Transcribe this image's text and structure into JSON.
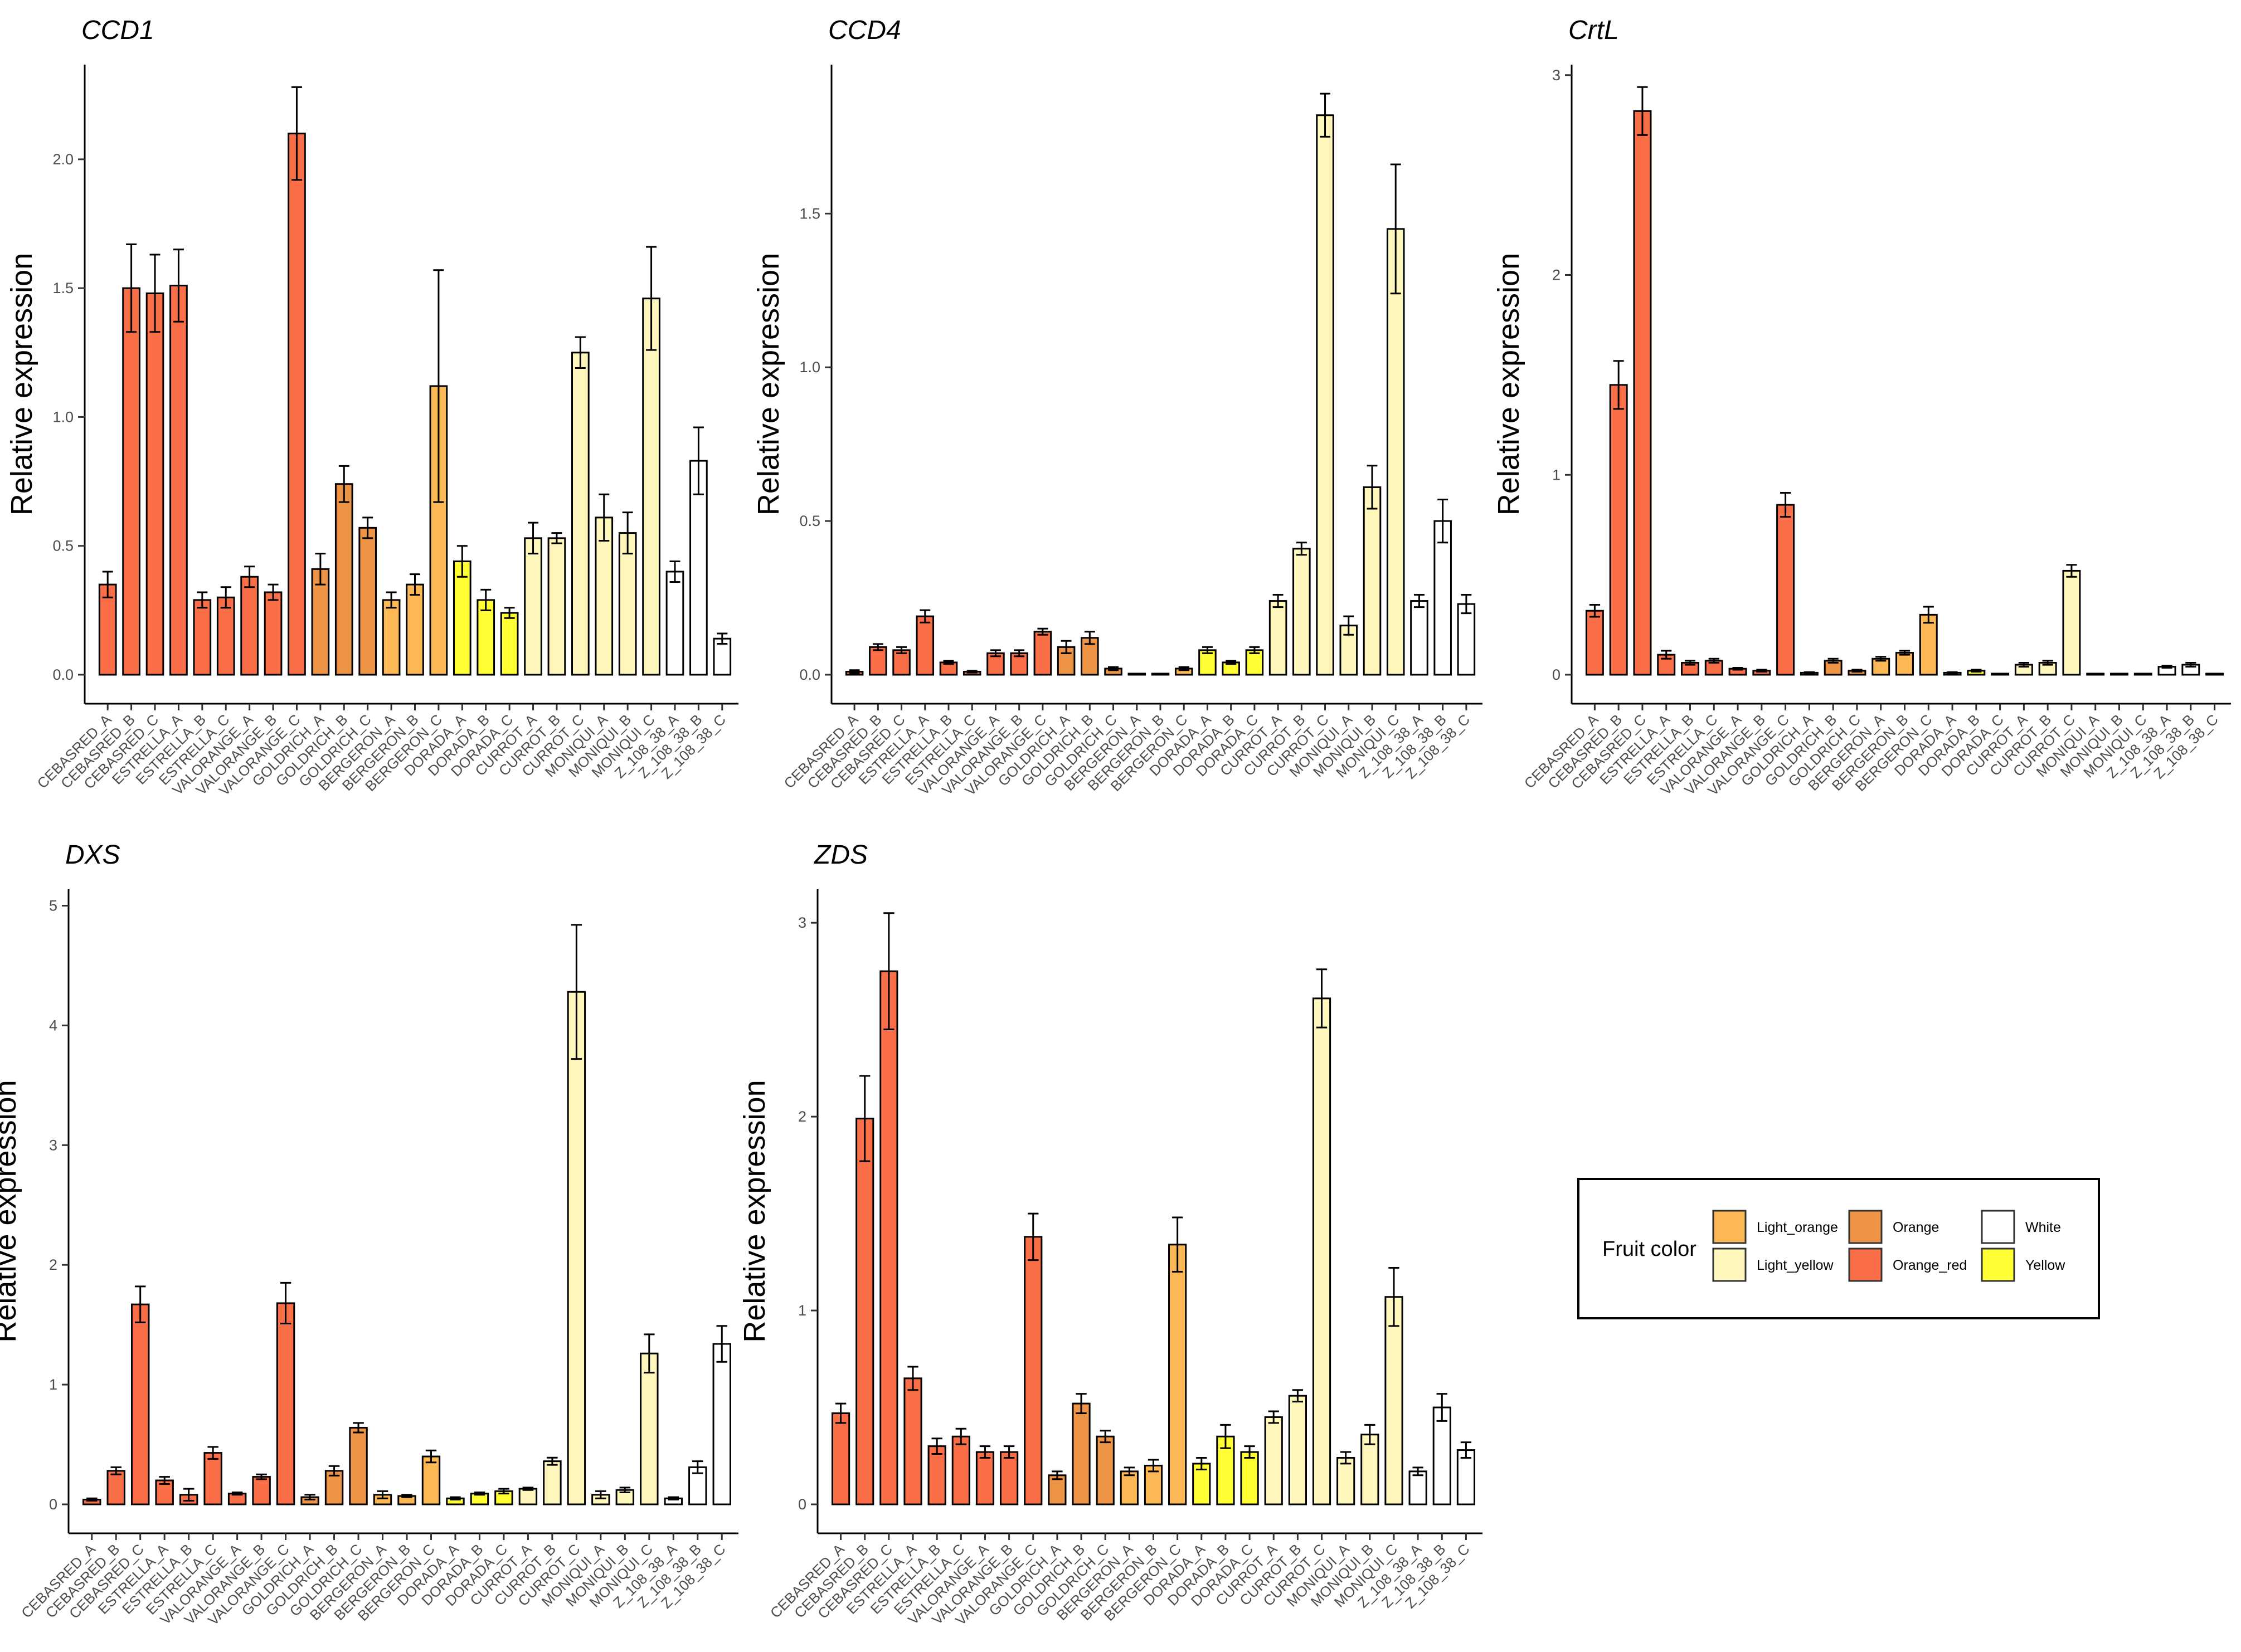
{
  "fill_colors": {
    "Light_orange": "#FDB856",
    "Orange": "#EE9447",
    "White": "#FFFFFF",
    "Light_yellow": "#FFF7BC",
    "Orange_red": "#FB6F48",
    "Yellow": "#FFFF33"
  },
  "legend": {
    "title": "Fruit color",
    "items": [
      {
        "label": "Light_orange",
        "color": "#FDB856"
      },
      {
        "label": "Light_yellow",
        "color": "#FFF7BC"
      },
      {
        "label": "Orange",
        "color": "#EE9447"
      },
      {
        "label": "Orange_red",
        "color": "#FB6F48"
      },
      {
        "label": "White",
        "color": "#FFFFFF"
      },
      {
        "label": "Yellow",
        "color": "#FFFF33"
      }
    ]
  },
  "chart_data": [
    {
      "type": "bar",
      "title": "CCD1",
      "ylabel": "Relative expression",
      "ylim": [
        0,
        2.35
      ],
      "yticks": [
        0.0,
        0.5,
        1.0,
        1.5,
        2.0
      ],
      "ytick_labels": [
        "0.0",
        "0.5",
        "1.0",
        "1.5",
        "2.0"
      ],
      "categories": [
        "CEBASRED_A",
        "CEBASRED_B",
        "CEBASRED_C",
        "ESTRELLA_A",
        "ESTRELLA_B",
        "ESTRELLA_C",
        "VALORANGE_A",
        "VALORANGE_B",
        "VALORANGE_C",
        "GOLDRICH_A",
        "GOLDRICH_B",
        "GOLDRICH_C",
        "BERGERON_A",
        "BERGERON_B",
        "BERGERON_C",
        "DORADA_A",
        "DORADA_B",
        "DORADA_C",
        "CURROT_A",
        "CURROT_B",
        "CURROT_C",
        "MONIQUI_A",
        "MONIQUI_B",
        "MONIQUI_C",
        "Z_108_38_A",
        "Z_108_38_B",
        "Z_108_38_C"
      ],
      "fruit_color": [
        "Orange_red",
        "Orange_red",
        "Orange_red",
        "Orange_red",
        "Orange_red",
        "Orange_red",
        "Orange_red",
        "Orange_red",
        "Orange_red",
        "Orange",
        "Orange",
        "Orange",
        "Light_orange",
        "Light_orange",
        "Light_orange",
        "Yellow",
        "Yellow",
        "Yellow",
        "Light_yellow",
        "Light_yellow",
        "Light_yellow",
        "Light_yellow",
        "Light_yellow",
        "Light_yellow",
        "White",
        "White",
        "White"
      ],
      "values": [
        0.35,
        1.5,
        1.48,
        1.51,
        0.29,
        0.3,
        0.38,
        0.32,
        2.1,
        0.41,
        0.74,
        0.57,
        0.29,
        0.35,
        1.12,
        0.44,
        0.29,
        0.24,
        0.53,
        0.53,
        1.25,
        0.61,
        0.55,
        1.46,
        0.4,
        0.83,
        0.14
      ],
      "errors": [
        0.05,
        0.17,
        0.15,
        0.14,
        0.03,
        0.04,
        0.04,
        0.03,
        0.18,
        0.06,
        0.07,
        0.04,
        0.03,
        0.04,
        0.45,
        0.06,
        0.04,
        0.02,
        0.06,
        0.02,
        0.06,
        0.09,
        0.08,
        0.2,
        0.04,
        0.13,
        0.02
      ]
    },
    {
      "type": "bar",
      "title": "CCD4",
      "ylabel": "Relative expression",
      "ylim": [
        0,
        1.97
      ],
      "yticks": [
        0.0,
        0.5,
        1.0,
        1.5
      ],
      "ytick_labels": [
        "0.0",
        "0.5",
        "1.0",
        "1.5"
      ],
      "categories": [
        "CEBASRED_A",
        "CEBASRED_B",
        "CEBASRED_C",
        "ESTRELLA_A",
        "ESTRELLA_B",
        "ESTRELLA_C",
        "VALORANGE_A",
        "VALORANGE_B",
        "VALORANGE_C",
        "GOLDRICH_A",
        "GOLDRICH_B",
        "GOLDRICH_C",
        "BERGERON_A",
        "BERGERON_B",
        "BERGERON_C",
        "DORADA_A",
        "DORADA_B",
        "DORADA_C",
        "CURROT_A",
        "CURROT_B",
        "CURROT_C",
        "MONIQUI_A",
        "MONIQUI_B",
        "MONIQUI_C",
        "Z_108_38_A",
        "Z_108_38_B",
        "Z_108_38_C"
      ],
      "fruit_color": [
        "Orange_red",
        "Orange_red",
        "Orange_red",
        "Orange_red",
        "Orange_red",
        "Orange_red",
        "Orange_red",
        "Orange_red",
        "Orange_red",
        "Orange",
        "Orange",
        "Orange",
        "Light_orange",
        "Light_orange",
        "Light_orange",
        "Yellow",
        "Yellow",
        "Yellow",
        "Light_yellow",
        "Light_yellow",
        "Light_yellow",
        "Light_yellow",
        "Light_yellow",
        "Light_yellow",
        "White",
        "White",
        "White"
      ],
      "values": [
        0.01,
        0.09,
        0.08,
        0.19,
        0.04,
        0.01,
        0.07,
        0.07,
        0.14,
        0.09,
        0.12,
        0.02,
        0.0,
        0.0,
        0.02,
        0.08,
        0.04,
        0.08,
        0.24,
        0.41,
        1.82,
        0.16,
        0.61,
        1.45,
        0.24,
        0.5,
        0.23
      ],
      "errors": [
        0.005,
        0.01,
        0.01,
        0.02,
        0.005,
        0.003,
        0.01,
        0.01,
        0.01,
        0.02,
        0.02,
        0.005,
        0.002,
        0.002,
        0.005,
        0.01,
        0.005,
        0.01,
        0.02,
        0.02,
        0.07,
        0.03,
        0.07,
        0.21,
        0.02,
        0.07,
        0.03
      ]
    },
    {
      "type": "bar",
      "title": "CrtL",
      "ylabel": "Relative expression",
      "ylim": [
        0,
        3.03
      ],
      "yticks": [
        0,
        1,
        2,
        3
      ],
      "ytick_labels": [
        "0",
        "1",
        "2",
        "3"
      ],
      "categories": [
        "CEBASRED_A",
        "CEBASRED_B",
        "CEBASRED_C",
        "ESTRELLA_A",
        "ESTRELLA_B",
        "ESTRELLA_C",
        "VALORANGE_A",
        "VALORANGE_B",
        "VALORANGE_C",
        "GOLDRICH_A",
        "GOLDRICH_B",
        "GOLDRICH_C",
        "BERGERON_A",
        "BERGERON_B",
        "BERGERON_C",
        "DORADA_A",
        "DORADA_B",
        "DORADA_C",
        "CURROT_A",
        "CURROT_B",
        "CURROT_C",
        "MONIQUI_A",
        "MONIQUI_B",
        "MONIQUI_C",
        "Z_108_38_A",
        "Z_108_38_B",
        "Z_108_38_C"
      ],
      "fruit_color": [
        "Orange_red",
        "Orange_red",
        "Orange_red",
        "Orange_red",
        "Orange_red",
        "Orange_red",
        "Orange_red",
        "Orange_red",
        "Orange_red",
        "Orange",
        "Orange",
        "Orange",
        "Light_orange",
        "Light_orange",
        "Light_orange",
        "Yellow",
        "Yellow",
        "Yellow",
        "Light_yellow",
        "Light_yellow",
        "Light_yellow",
        "Light_yellow",
        "Light_yellow",
        "Light_yellow",
        "White",
        "White",
        "White"
      ],
      "values": [
        0.32,
        1.45,
        2.82,
        0.1,
        0.06,
        0.07,
        0.03,
        0.02,
        0.85,
        0.01,
        0.07,
        0.02,
        0.08,
        0.11,
        0.3,
        0.01,
        0.02,
        0.0,
        0.05,
        0.06,
        0.52,
        0.0,
        0.0,
        0.0,
        0.04,
        0.05,
        0.0
      ],
      "errors": [
        0.03,
        0.12,
        0.12,
        0.02,
        0.01,
        0.01,
        0.005,
        0.005,
        0.06,
        0.003,
        0.01,
        0.005,
        0.01,
        0.01,
        0.04,
        0.003,
        0.005,
        0.001,
        0.01,
        0.01,
        0.03,
        0.001,
        0.001,
        0.001,
        0.005,
        0.01,
        0.001
      ]
    },
    {
      "type": "bar",
      "title": "DXS",
      "ylabel": "Relative expression",
      "ylim": [
        0,
        5.1
      ],
      "yticks": [
        0,
        1,
        2,
        3,
        4,
        5
      ],
      "ytick_labels": [
        "0",
        "1",
        "2",
        "3",
        "4",
        "5"
      ],
      "categories": [
        "CEBASRED_A",
        "CEBASRED_B",
        "CEBASRED_C",
        "ESTRELLA_A",
        "ESTRELLA_B",
        "ESTRELLA_C",
        "VALORANGE_A",
        "VALORANGE_B",
        "VALORANGE_C",
        "GOLDRICH_A",
        "GOLDRICH_B",
        "GOLDRICH_C",
        "BERGERON_A",
        "BERGERON_B",
        "BERGERON_C",
        "DORADA_A",
        "DORADA_B",
        "DORADA_C",
        "CURROT_A",
        "CURROT_B",
        "CURROT_C",
        "MONIQUI_A",
        "MONIQUI_B",
        "MONIQUI_C",
        "Z_108_38_A",
        "Z_108_38_B",
        "Z_108_38_C"
      ],
      "fruit_color": [
        "Orange_red",
        "Orange_red",
        "Orange_red",
        "Orange_red",
        "Orange_red",
        "Orange_red",
        "Orange_red",
        "Orange_red",
        "Orange_red",
        "Orange",
        "Orange",
        "Orange",
        "Light_orange",
        "Light_orange",
        "Light_orange",
        "Yellow",
        "Yellow",
        "Yellow",
        "Light_yellow",
        "Light_yellow",
        "Light_yellow",
        "Light_yellow",
        "Light_yellow",
        "Light_yellow",
        "White",
        "White",
        "White"
      ],
      "values": [
        0.04,
        0.28,
        1.67,
        0.2,
        0.08,
        0.43,
        0.09,
        0.23,
        1.68,
        0.06,
        0.28,
        0.64,
        0.08,
        0.07,
        0.4,
        0.05,
        0.09,
        0.11,
        0.13,
        0.36,
        4.28,
        0.08,
        0.12,
        1.26,
        0.05,
        0.31,
        1.34
      ],
      "errors": [
        0.01,
        0.03,
        0.15,
        0.03,
        0.05,
        0.05,
        0.01,
        0.02,
        0.17,
        0.02,
        0.04,
        0.04,
        0.03,
        0.01,
        0.05,
        0.01,
        0.01,
        0.02,
        0.01,
        0.03,
        0.56,
        0.03,
        0.02,
        0.16,
        0.01,
        0.05,
        0.15
      ]
    },
    {
      "type": "bar",
      "title": "ZDS",
      "ylabel": "Relative expression",
      "ylim": [
        0,
        3.15
      ],
      "yticks": [
        0,
        1,
        2,
        3
      ],
      "ytick_labels": [
        "0",
        "1",
        "2",
        "3"
      ],
      "categories": [
        "CEBASRED_A",
        "CEBASRED_B",
        "CEBASRED_C",
        "ESTRELLA_A",
        "ESTRELLA_B",
        "ESTRELLA_C",
        "VALORANGE_A",
        "VALORANGE_B",
        "VALORANGE_C",
        "GOLDRICH_A",
        "GOLDRICH_B",
        "GOLDRICH_C",
        "BERGERON_A",
        "BERGERON_B",
        "BERGERON_C",
        "DORADA_A",
        "DORADA_B",
        "DORADA_C",
        "CURROT_A",
        "CURROT_B",
        "CURROT_C",
        "MONIQUI_A",
        "MONIQUI_B",
        "MONIQUI_C",
        "Z_108_38_A",
        "Z_108_38_B",
        "Z_108_38_C"
      ],
      "fruit_color": [
        "Orange_red",
        "Orange_red",
        "Orange_red",
        "Orange_red",
        "Orange_red",
        "Orange_red",
        "Orange_red",
        "Orange_red",
        "Orange_red",
        "Orange",
        "Orange",
        "Orange",
        "Light_orange",
        "Light_orange",
        "Light_orange",
        "Yellow",
        "Yellow",
        "Yellow",
        "Light_yellow",
        "Light_yellow",
        "Light_yellow",
        "Light_yellow",
        "Light_yellow",
        "Light_yellow",
        "White",
        "White",
        "White"
      ],
      "values": [
        0.47,
        1.99,
        2.75,
        0.65,
        0.3,
        0.35,
        0.27,
        0.27,
        1.38,
        0.15,
        0.52,
        0.35,
        0.17,
        0.2,
        1.34,
        0.21,
        0.35,
        0.27,
        0.45,
        0.56,
        2.61,
        0.24,
        0.36,
        1.07,
        0.17,
        0.5,
        0.28
      ],
      "errors": [
        0.05,
        0.22,
        0.3,
        0.06,
        0.04,
        0.04,
        0.03,
        0.03,
        0.12,
        0.02,
        0.05,
        0.03,
        0.02,
        0.03,
        0.14,
        0.03,
        0.06,
        0.03,
        0.03,
        0.03,
        0.15,
        0.03,
        0.05,
        0.15,
        0.02,
        0.07,
        0.04
      ]
    }
  ]
}
